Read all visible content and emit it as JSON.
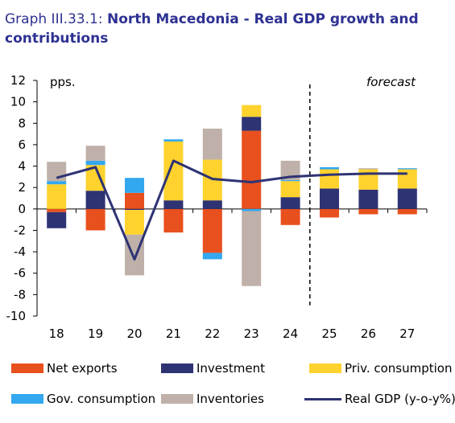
{
  "header": {
    "prefix": "Graph III.33.1: ",
    "title": "North Macedonia - Real GDP growth and contributions"
  },
  "colors": {
    "net_exports": "#e8501e",
    "investment": "#2e3374",
    "priv_consumption": "#ffd22e",
    "gov_consumption": "#33a7ef",
    "inventories": "#bfb1a9",
    "real_gdp": "#2e3374",
    "title": "#2e3192"
  },
  "chart_data": {
    "type": "bar",
    "stacked": true,
    "categories": [
      "18",
      "19",
      "20",
      "21",
      "22",
      "23",
      "24",
      "25",
      "26",
      "27"
    ],
    "ylabel": "pps.",
    "ylim": [
      -10,
      12
    ],
    "yticks": [
      12,
      10,
      8,
      6,
      4,
      2,
      0,
      -2,
      -4,
      -6,
      -8,
      -10
    ],
    "forecast_label": "forecast",
    "forecast_after": "24",
    "series": [
      {
        "name": "Net exports",
        "key": "net_exports",
        "values": [
          -0.3,
          -2.0,
          1.5,
          -2.2,
          -4.1,
          7.3,
          -1.5,
          -0.8,
          -0.5,
          -0.5
        ]
      },
      {
        "name": "Investment",
        "key": "investment",
        "values": [
          -1.5,
          1.7,
          -0.1,
          0.8,
          0.8,
          1.3,
          1.1,
          1.9,
          1.8,
          1.9
        ]
      },
      {
        "name": "Priv. consumption",
        "key": "priv_consumption",
        "values": [
          2.3,
          2.4,
          -2.3,
          5.5,
          3.8,
          1.1,
          1.5,
          1.8,
          1.9,
          1.8
        ]
      },
      {
        "name": "Gov. consumption",
        "key": "gov_consumption",
        "values": [
          0.3,
          0.4,
          1.4,
          0.2,
          -0.6,
          -0.2,
          0.1,
          0.2,
          0.0,
          0.1
        ]
      },
      {
        "name": "Inventories",
        "key": "inventories",
        "values": [
          1.8,
          1.4,
          -3.8,
          0.0,
          2.9,
          -7.0,
          1.8,
          0.0,
          0.1,
          0.0
        ]
      }
    ],
    "line": {
      "name": "Real GDP (y-o-y%)",
      "values": [
        2.9,
        3.9,
        -4.7,
        4.5,
        2.8,
        2.5,
        3.0,
        3.2,
        3.3,
        3.3
      ]
    }
  },
  "legend": {
    "net_exports": "Net exports",
    "investment": "Investment",
    "priv_consumption": "Priv. consumption",
    "gov_consumption": "Gov. consumption",
    "inventories": "Inventories",
    "real_gdp": "Real GDP (y-o-y%)"
  }
}
